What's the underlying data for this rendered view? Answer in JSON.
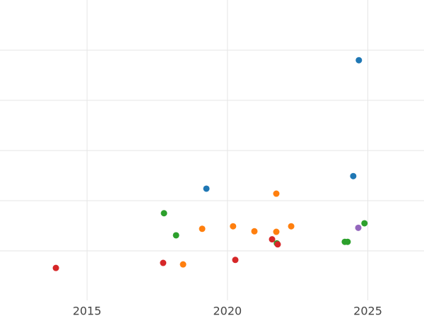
{
  "chart_data": {
    "type": "scatter",
    "xlim": [
      2011.9,
      2027
    ],
    "ylim": [
      0,
      6
    ],
    "xticks": [
      2015,
      2020,
      2025
    ],
    "ygrid": [
      1,
      2,
      3,
      4,
      5
    ],
    "grid": true,
    "series": [
      {
        "color": "#1f77b4",
        "x": [
          2024.68,
          2024.48,
          2019.25
        ],
        "values": [
          4.8,
          2.49,
          2.24
        ]
      },
      {
        "color": "#ff7f0e",
        "x": [
          2021.74,
          2019.1,
          2020.2,
          2020.96,
          2021.74,
          2022.27,
          2018.42
        ],
        "values": [
          2.14,
          1.44,
          1.49,
          1.39,
          1.38,
          1.49,
          0.73
        ]
      },
      {
        "color": "#2ca02c",
        "x": [
          2017.74,
          2018.17,
          2021.76,
          2024.18,
          2024.28,
          2024.88
        ],
        "values": [
          1.75,
          1.31,
          1.15,
          1.18,
          1.18,
          1.55
        ]
      },
      {
        "color": "#d62728",
        "x": [
          2013.89,
          2017.71,
          2020.28,
          2021.59,
          2021.79
        ],
        "values": [
          0.66,
          0.76,
          0.82,
          1.23,
          1.13
        ]
      },
      {
        "color": "#9467bd",
        "x": [
          2024.66
        ],
        "values": [
          1.46
        ]
      }
    ]
  }
}
